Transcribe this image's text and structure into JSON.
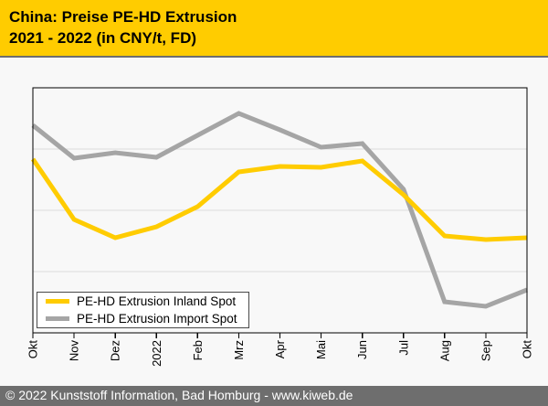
{
  "header": {
    "title_line1": "China: Preise PE-HD Extrusion",
    "title_line2": "2021 - 2022 (in CNY/t, FD)",
    "background_color": "#FFCC00",
    "text_color": "#000000"
  },
  "footer": {
    "text": "© 2022 Kunststoff Information, Bad Homburg - www.kiweb.de",
    "background_color": "#6E6E6E",
    "text_color": "#FFFFFF"
  },
  "chart_data": {
    "type": "line",
    "title": "China: Preise PE-HD Extrusion 2021 - 2022 (in CNY/t, FD)",
    "x_categories": [
      "Okt",
      "Nov",
      "Dez",
      "2022",
      "Feb",
      "Mrz",
      "Apr",
      "Mai",
      "Jun",
      "Jul",
      "Aug",
      "Sep",
      "Okt"
    ],
    "x_tick_label_rotation_deg": 90,
    "y_axis": {
      "unit": "CNY/t",
      "tick_labels_visible": false,
      "gridline_count": 3,
      "gridline_color": "#DCDCDC"
    },
    "value_scale_note": "y-axis has no printed scale in source; values are relative plot heights in px above the x-axis (plot height 268px)",
    "series": [
      {
        "id": "inland",
        "name": "PE-HD Extrusion Inland Spot",
        "color": "#FFCC00",
        "values": [
          190,
          124,
          104,
          116,
          138,
          176,
          182,
          181,
          188,
          151,
          106,
          102,
          104
        ]
      },
      {
        "id": "import",
        "name": "PE-HD Extrusion Import Spot",
        "color": "#A5A5A5",
        "values": [
          227,
          191,
          197,
          192,
          216,
          240,
          222,
          203,
          207,
          157,
          34,
          29,
          47
        ]
      }
    ],
    "legend": {
      "position": "inside bottom-left",
      "border_color": "#4A4A4A",
      "background": "#FFFFFF"
    }
  }
}
